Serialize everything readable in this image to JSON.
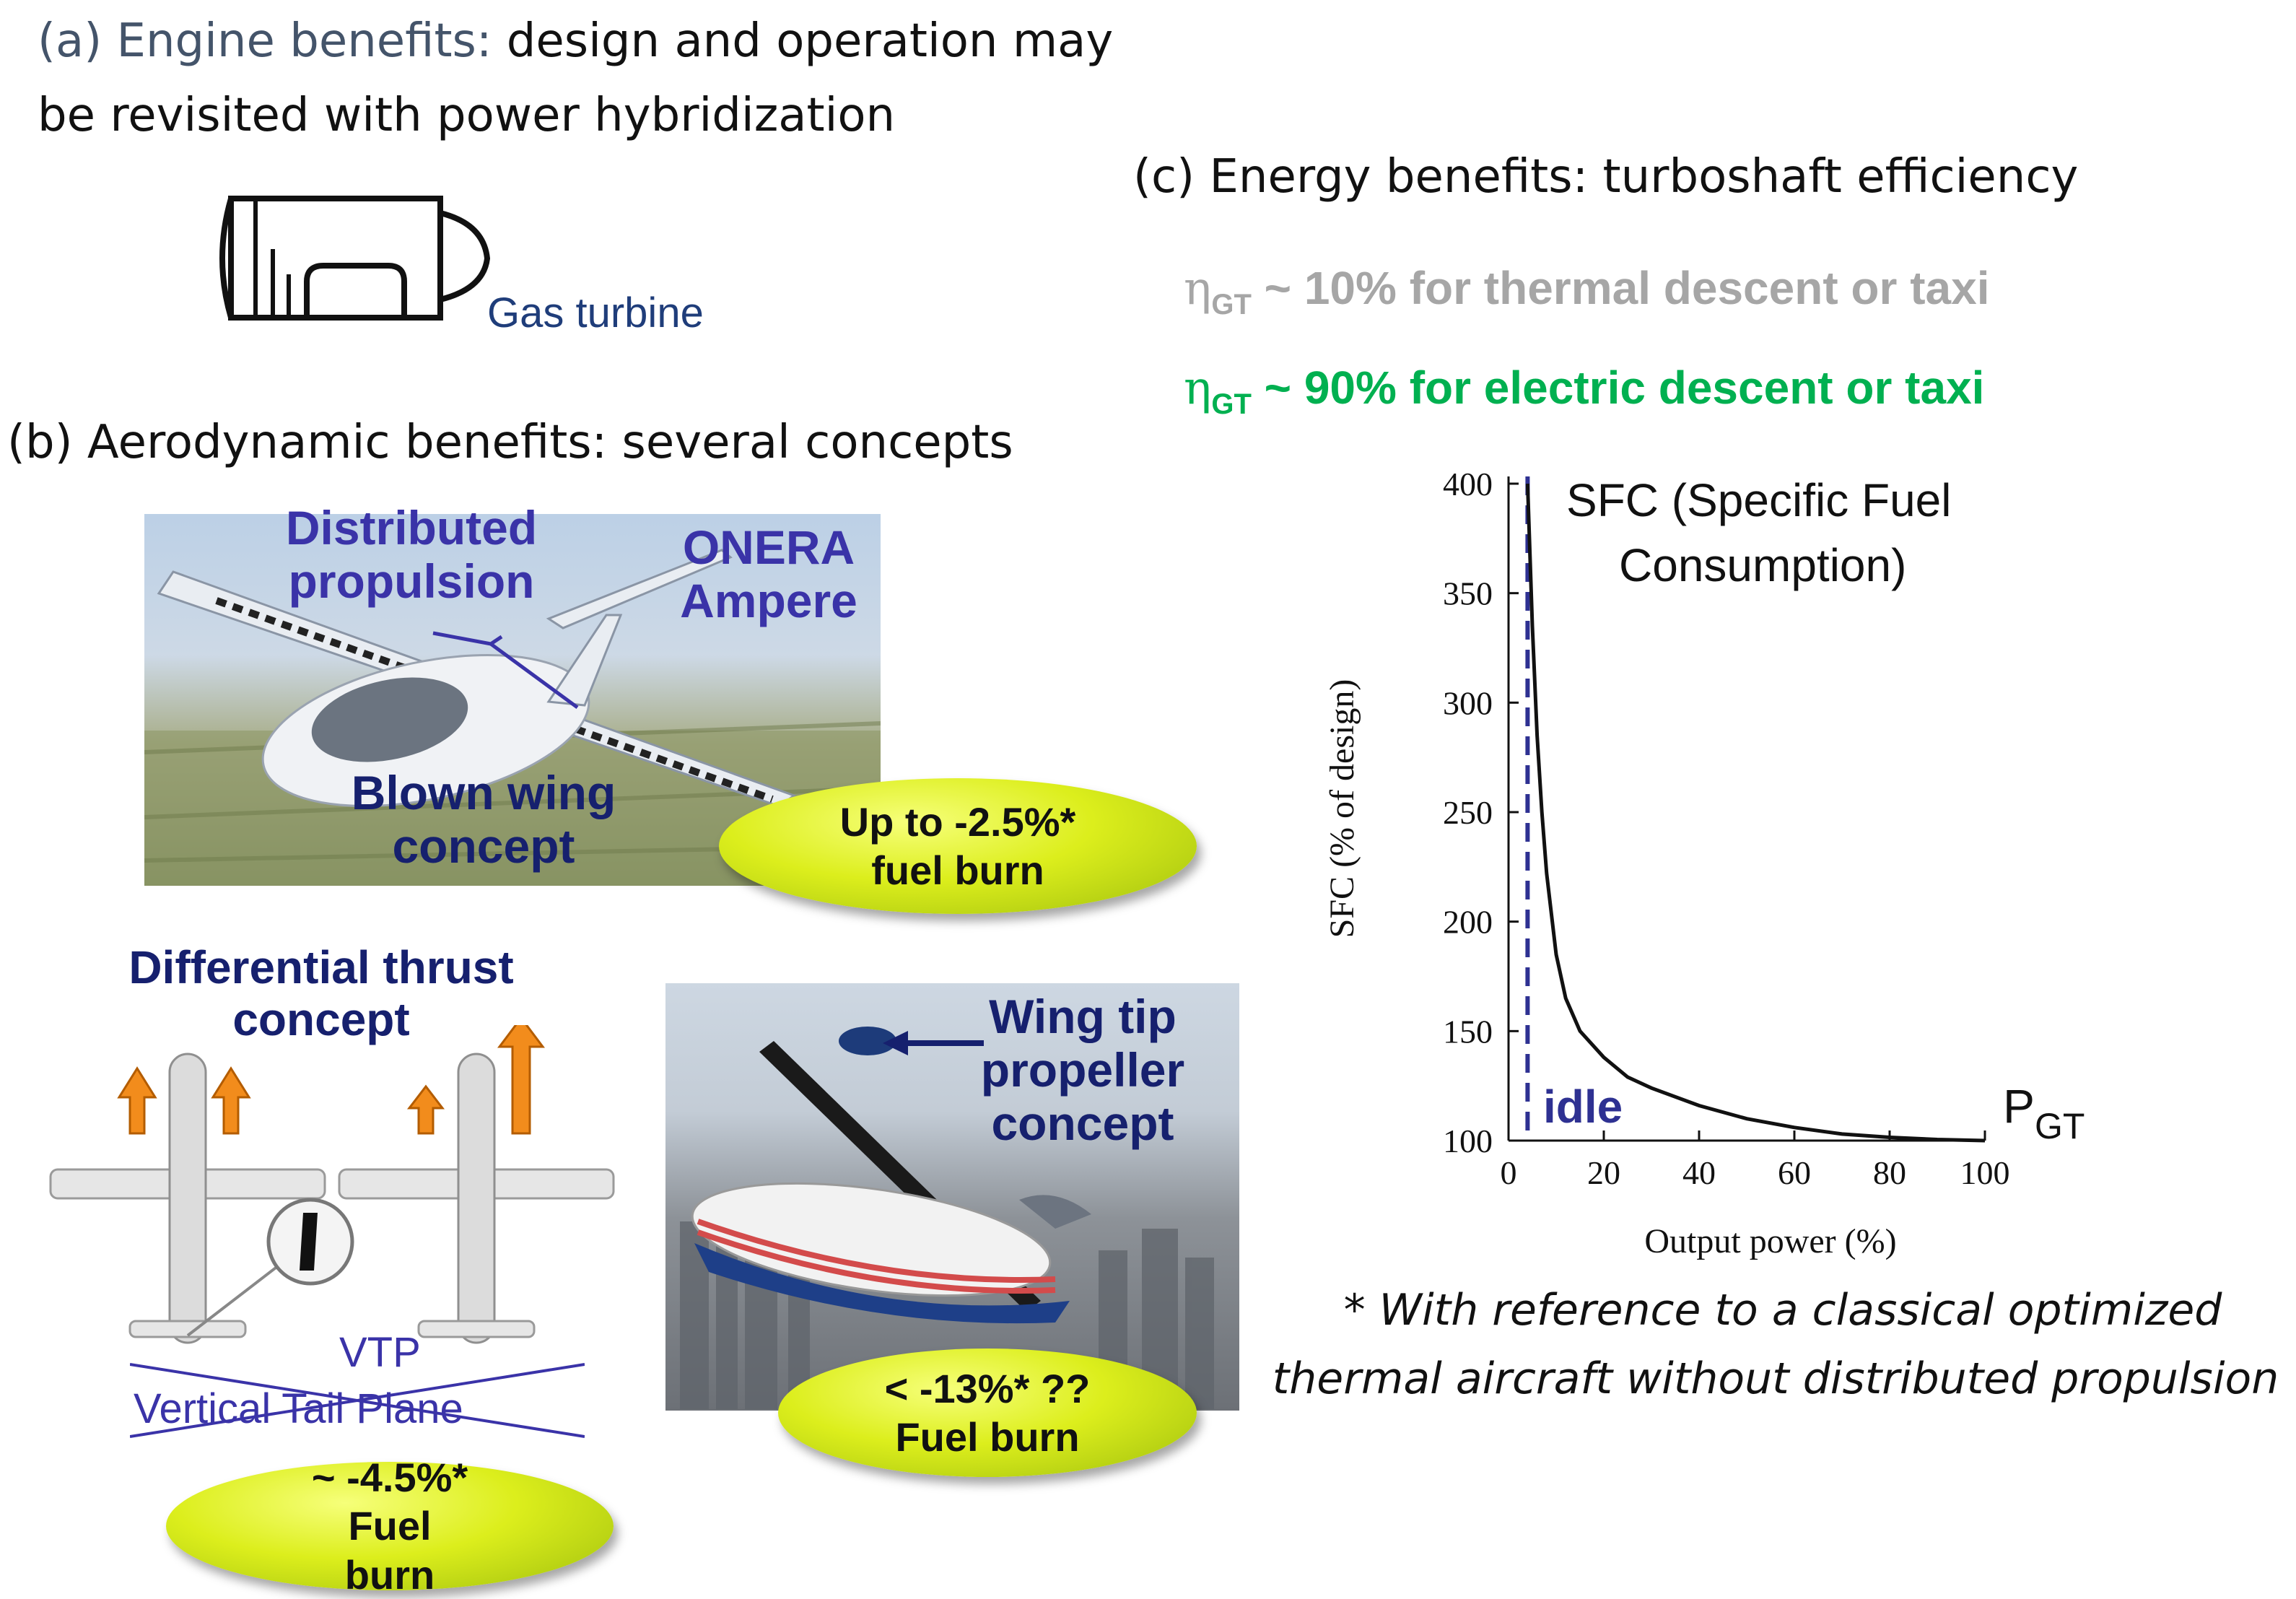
{
  "section_a": {
    "lead": "(a) Engine benefits:",
    "rest": " design and operation may",
    "line2": "be revisited with power hybridization",
    "engine_label": "Gas turbine"
  },
  "section_b": {
    "title": "(b) Aerodynamic benefits: several concepts",
    "ampere": {
      "label_distributed": "Distributed propulsion",
      "label_onera": "ONERA Ampere",
      "label_blown": "Blown wing concept",
      "ellipse": "Up to -2.5%* fuel burn"
    },
    "differential": {
      "title": "Differential thrust concept",
      "vtp_short": "VTP",
      "vtp_long": "Vertical Tail Plane",
      "ellipse": "~ -4.5%* Fuel burn"
    },
    "wingtip": {
      "title": "Wing tip propeller concept",
      "ellipse": "< -13%* ?? Fuel burn"
    }
  },
  "section_c": {
    "title": "(c) Energy benefits: turboshaft efficiency",
    "eta_symbol": "η",
    "eta_subscript": "GT",
    "eta_thermal": " ~ 10% for thermal descent or taxi",
    "eta_electric": " ~ 90% for electric descent or taxi",
    "colors": {
      "thermal": "#a6a6a6",
      "electric": "#00b050"
    }
  },
  "chart_data": {
    "type": "line",
    "ylabel": "SFC (% of design)",
    "xlabel": "Output power (%)",
    "xlim": [
      0,
      100
    ],
    "ylim": [
      100,
      400
    ],
    "xticks": [
      0,
      20,
      40,
      60,
      80,
      100
    ],
    "yticks": [
      100,
      150,
      200,
      250,
      300,
      350,
      400
    ],
    "annotation": "SFC (Specific Fuel Consumption)",
    "idle_label": "idle",
    "idle_x": 4,
    "power_label": "P",
    "power_subscript": "GT",
    "series": [
      {
        "x": [
          4,
          5,
          6,
          7,
          8,
          10,
          12,
          15,
          20,
          25,
          30,
          40,
          50,
          60,
          70,
          80,
          90,
          100
        ],
        "y": [
          400,
          335,
          285,
          250,
          222,
          185,
          165,
          150,
          138,
          129,
          124,
          116,
          110,
          106,
          103,
          101.5,
          100.5,
          100
        ]
      }
    ]
  },
  "footnote": {
    "line1": "* With reference to a classical optimized",
    "line2": "thermal aircraft without distributed propulsion"
  }
}
